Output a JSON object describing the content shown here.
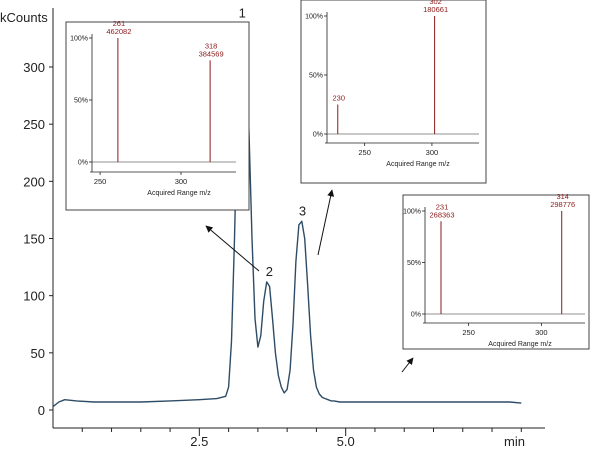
{
  "chart_data": [
    {
      "type": "line",
      "role": "main-chromatogram",
      "ylabel": "kCounts",
      "xlabel": "min",
      "xlim": [
        0,
        8.2
      ],
      "ylim": [
        0,
        340
      ],
      "x_ticks": [
        2.5,
        5.0
      ],
      "x_tick_labels": [
        "2.5",
        "5.0"
      ],
      "x_minor_ticks": [
        0.5,
        1.0,
        1.5,
        2.0,
        3.0,
        3.5,
        4.0,
        4.5,
        5.5,
        6.0,
        6.5,
        7.0,
        7.5,
        8.0
      ],
      "y_ticks": [
        0,
        50,
        100,
        150,
        200,
        250,
        300
      ],
      "y_tick_labels": [
        "0",
        "50",
        "100",
        "150",
        "200",
        "250",
        "300"
      ],
      "series": [
        {
          "color": "#2e4c66",
          "x": [
            0.0,
            0.1,
            0.2,
            0.4,
            0.7,
            1.0,
            1.5,
            2.0,
            2.5,
            2.8,
            2.95,
            3.0,
            3.05,
            3.1,
            3.15,
            3.2,
            3.25,
            3.3,
            3.35,
            3.4,
            3.45,
            3.5,
            3.55,
            3.6,
            3.65,
            3.7,
            3.75,
            3.8,
            3.85,
            3.9,
            3.95,
            4.0,
            4.05,
            4.1,
            4.15,
            4.2,
            4.25,
            4.3,
            4.35,
            4.4,
            4.45,
            4.5,
            4.55,
            4.6,
            4.65,
            4.7,
            4.75,
            4.8,
            4.9,
            5.0,
            5.2,
            5.5,
            6.0,
            6.5,
            7.0,
            7.5,
            7.8,
            8.0
          ],
          "y": [
            3,
            7,
            9,
            8,
            7,
            7,
            7,
            8,
            9,
            10,
            12,
            20,
            60,
            150,
            260,
            325,
            338,
            315,
            240,
            150,
            80,
            55,
            65,
            95,
            112,
            108,
            80,
            50,
            30,
            20,
            15,
            18,
            35,
            75,
            130,
            162,
            165,
            150,
            110,
            65,
            35,
            20,
            14,
            11,
            10,
            9,
            8,
            8,
            7,
            7,
            7,
            7,
            7,
            7,
            7,
            7,
            7,
            6
          ]
        }
      ],
      "annotations": [
        "1",
        "2",
        "3"
      ],
      "annotation_positions": [
        {
          "x": 3.25,
          "y": 338
        },
        {
          "x": 3.68,
          "y": 112
        },
        {
          "x": 4.28,
          "y": 165
        }
      ]
    },
    {
      "type": "bar",
      "role": "mass-spectrum-inset",
      "peak_ref": "1",
      "xlabel": "Acquired Range m/z",
      "xlim": [
        245,
        334
      ],
      "ylim": [
        0,
        100
      ],
      "x_ticks": [
        250,
        300
      ],
      "x_tick_labels": [
        "250",
        "300"
      ],
      "y_ticks": [
        0,
        50,
        100
      ],
      "y_tick_labels": [
        "0%",
        "50%",
        "100%"
      ],
      "peaks": [
        {
          "mz": 261,
          "rel": 100,
          "mz_label": "261",
          "count_label": "462082"
        },
        {
          "mz": 318,
          "rel": 82,
          "mz_label": "318",
          "count_label": "384569"
        }
      ]
    },
    {
      "type": "bar",
      "role": "mass-spectrum-inset",
      "peak_ref": "2",
      "xlabel": "Acquired Range m/z",
      "xlim": [
        222,
        335
      ],
      "ylim": [
        0,
        100
      ],
      "x_ticks": [
        250,
        300
      ],
      "x_tick_labels": [
        "250",
        "300"
      ],
      "y_ticks": [
        0,
        50,
        100
      ],
      "y_tick_labels": [
        "0%",
        "50%",
        "100%"
      ],
      "peaks": [
        {
          "mz": 230,
          "rel": 25,
          "mz_label": "230",
          "count_label": ""
        },
        {
          "mz": 302,
          "rel": 100,
          "mz_label": "302",
          "count_label": "180661"
        }
      ]
    },
    {
      "type": "bar",
      "role": "mass-spectrum-inset",
      "peak_ref": "3",
      "xlabel": "Acquired Range m/z",
      "xlim": [
        220,
        330
      ],
      "ylim": [
        0,
        100
      ],
      "x_ticks": [
        250,
        300
      ],
      "x_tick_labels": [
        "250",
        "300"
      ],
      "y_ticks": [
        0,
        50,
        100
      ],
      "y_tick_labels": [
        "0%",
        "50%",
        "100%"
      ],
      "peaks": [
        {
          "mz": 231,
          "rel": 90,
          "mz_label": "231",
          "count_label": "268363"
        },
        {
          "mz": 314,
          "rel": 100,
          "mz_label": "314",
          "count_label": "298776"
        }
      ]
    }
  ],
  "colors": {
    "trace": "#2e4c66",
    "peak_line": "#8b1a1a",
    "peak_label": "#8b1a1a",
    "axis": "#222222",
    "inset_border": "#444444"
  }
}
